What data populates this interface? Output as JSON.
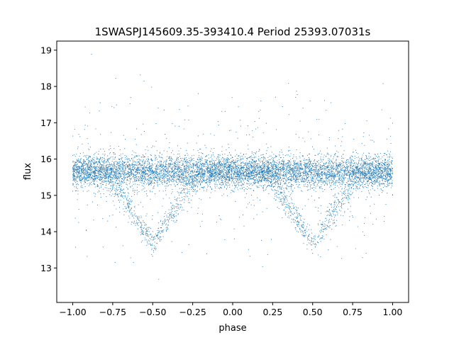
{
  "chart_data": {
    "type": "scatter",
    "title": "1SWASPJ145609.35-393410.4 Period 25393.07031s",
    "xlabel": "phase",
    "ylabel": "flux",
    "xlim": [
      -1.1,
      1.1
    ],
    "ylim": [
      12.05,
      19.25
    ],
    "xticks": [
      -1.0,
      -0.75,
      -0.5,
      -0.25,
      0.0,
      0.25,
      0.5,
      0.75,
      1.0
    ],
    "xtick_labels": [
      "−1.00",
      "−0.75",
      "−0.50",
      "−0.25",
      "0.00",
      "0.25",
      "0.50",
      "0.75",
      "1.00"
    ],
    "yticks": [
      13,
      14,
      15,
      16,
      17,
      18,
      19
    ],
    "ytick_labels": [
      "13",
      "14",
      "15",
      "16",
      "17",
      "18",
      "19"
    ],
    "grid": false,
    "series": [
      {
        "color": "#1f77b4",
        "baseline_flux": 15.65,
        "eclipse_phases": [
          -0.5,
          0.5
        ],
        "eclipse_min_flux": 13.7,
        "eclipse_half_width": 0.3,
        "x": [
          -1.0,
          -0.9,
          -0.8,
          -0.75,
          -0.7,
          -0.65,
          -0.6,
          -0.55,
          -0.5,
          -0.45,
          -0.4,
          -0.35,
          -0.3,
          -0.25,
          -0.2,
          -0.1,
          0.0,
          0.1,
          0.2,
          0.25,
          0.3,
          0.35,
          0.4,
          0.45,
          0.5,
          0.55,
          0.6,
          0.65,
          0.7,
          0.75,
          0.8,
          0.9,
          1.0
        ],
        "y": [
          15.65,
          15.6,
          15.4,
          15.1,
          14.8,
          14.5,
          14.2,
          13.9,
          13.7,
          13.9,
          14.2,
          14.5,
          14.8,
          15.1,
          15.4,
          15.6,
          15.65,
          15.6,
          15.4,
          15.1,
          14.8,
          14.5,
          14.2,
          13.9,
          13.7,
          13.9,
          14.2,
          14.5,
          14.8,
          15.1,
          15.4,
          15.6,
          15.65
        ]
      }
    ]
  }
}
